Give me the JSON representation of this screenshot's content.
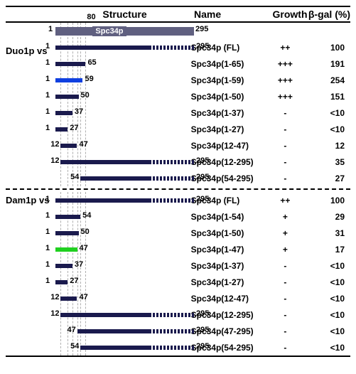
{
  "headers": {
    "structure": "Structure",
    "name": "Name",
    "growth": "Growth",
    "bgal": "β-gal (%)"
  },
  "axis": {
    "min": 1,
    "max": 295,
    "label_80": "80"
  },
  "reference": {
    "label": "Spc34p",
    "start": 1,
    "end": 295
  },
  "sections": [
    {
      "label": "Duo1p vs",
      "rows": [
        {
          "start": 1,
          "end": 295,
          "dashFrom": 200,
          "color": "dark",
          "name": "Spc34p (FL)",
          "growth": "++",
          "bgal": "100"
        },
        {
          "start": 1,
          "end": 65,
          "color": "dark",
          "name": "Spc34p(1-65)",
          "growth": "+++",
          "bgal": "191"
        },
        {
          "start": 1,
          "end": 59,
          "color": "blue",
          "name": "Spc34p(1-59)",
          "growth": "+++",
          "bgal": "254"
        },
        {
          "start": 1,
          "end": 50,
          "color": "dark",
          "name": "Spc34p(1-50)",
          "growth": "+++",
          "bgal": "151"
        },
        {
          "start": 1,
          "end": 37,
          "color": "dark",
          "name": "Spc34p(1-37)",
          "growth": "-",
          "bgal": "<10"
        },
        {
          "start": 1,
          "end": 27,
          "color": "dark",
          "name": "Spc34p(1-27)",
          "growth": "-",
          "bgal": "<10"
        },
        {
          "start": 12,
          "end": 47,
          "color": "dark",
          "name": "Spc34p(12-47)",
          "growth": "-",
          "bgal": "12"
        },
        {
          "start": 12,
          "end": 295,
          "dashFrom": 200,
          "color": "dark",
          "name": "Spc34p(12-295)",
          "growth": "-",
          "bgal": "35"
        },
        {
          "start": 54,
          "end": 295,
          "dashFrom": 200,
          "color": "dark",
          "name": "Spc34p(54-295)",
          "growth": "-",
          "bgal": "27"
        }
      ]
    },
    {
      "label": "Dam1p vs",
      "rows": [
        {
          "start": 1,
          "end": 295,
          "dashFrom": 200,
          "color": "dark",
          "name": "Spc34p (FL)",
          "growth": "++",
          "bgal": "100"
        },
        {
          "start": 1,
          "end": 54,
          "color": "dark",
          "name": "Spc34p(1-54)",
          "growth": "+",
          "bgal": "29"
        },
        {
          "start": 1,
          "end": 50,
          "color": "dark",
          "name": "Spc34p(1-50)",
          "growth": "+",
          "bgal": "31"
        },
        {
          "start": 1,
          "end": 47,
          "color": "green",
          "name": "Spc34p(1-47)",
          "growth": "+",
          "bgal": "17"
        },
        {
          "start": 1,
          "end": 37,
          "color": "dark",
          "name": "Spc34p(1-37)",
          "growth": "-",
          "bgal": "<10"
        },
        {
          "start": 1,
          "end": 27,
          "color": "dark",
          "name": "Spc34p(1-27)",
          "growth": "-",
          "bgal": "<10"
        },
        {
          "start": 12,
          "end": 47,
          "color": "dark",
          "name": "Spc34p(12-47)",
          "growth": "-",
          "bgal": "<10"
        },
        {
          "start": 12,
          "end": 295,
          "dashFrom": 200,
          "color": "dark",
          "name": "Spc34p(12-295)",
          "growth": "-",
          "bgal": "<10"
        },
        {
          "start": 47,
          "end": 295,
          "dashFrom": 200,
          "color": "dark",
          "name": "Spc34p(47-295)",
          "growth": "-",
          "bgal": "<10"
        },
        {
          "start": 54,
          "end": 295,
          "dashFrom": 200,
          "color": "dark",
          "name": "Spc34p(54-295)",
          "growth": "-",
          "bgal": "<10"
        }
      ]
    }
  ],
  "style": {
    "trackWidthPx": 195,
    "gridPositions": [
      12,
      27,
      37,
      47,
      54,
      65
    ],
    "solidPortionEnd": 200
  }
}
